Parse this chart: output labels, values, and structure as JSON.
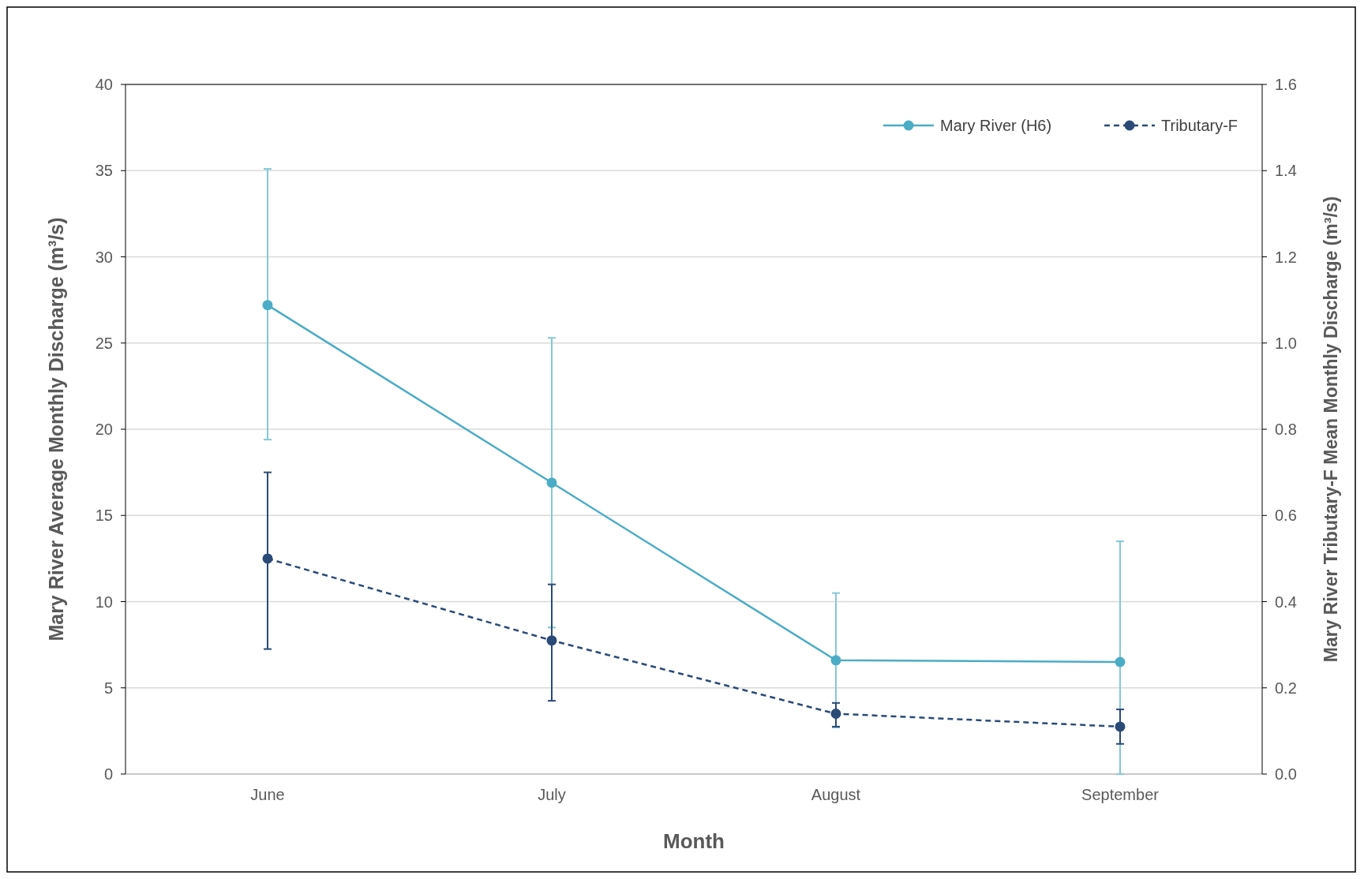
{
  "chart_data": {
    "type": "line",
    "xlabel": "Month",
    "ylabel": "Mary River Average Monthly Discharge (m³/s)",
    "y2label": "Mary River Tributary-F Mean Monthly Discharge (m³/s)",
    "categories": [
      "June",
      "July",
      "August",
      "September"
    ],
    "series": [
      {
        "name": "Mary River (H6)",
        "color": "#4bacc6",
        "values": [
          27.2,
          16.9,
          6.6,
          6.5
        ],
        "errors": [
          [
            19.4,
            35.1
          ],
          [
            8.5,
            25.3
          ],
          [
            2.7,
            10.5
          ],
          [
            0,
            13.5
          ]
        ],
        "line_style": "solid"
      },
      {
        "name": "Tributary-F",
        "color": "#2a4a78",
        "values": [
          0.5,
          0.31,
          0.14,
          0.11
        ],
        "errors": [
          [
            0.29,
            0.7
          ],
          [
            0.17,
            0.44
          ],
          [
            0.11,
            0.165
          ],
          [
            0.07,
            0.15
          ]
        ],
        "axis": "y2",
        "line_style": "dashed"
      }
    ],
    "ylim": [
      0,
      40
    ],
    "yticks": [
      0,
      5,
      10,
      15,
      20,
      25,
      30,
      35,
      40
    ],
    "y2lim": [
      0,
      1.6
    ],
    "y2ticks": [
      {
        "value": 0,
        "label": "0.0"
      },
      {
        "value": 0.2,
        "label": "0.2"
      },
      {
        "value": 0.4,
        "label": "0.4"
      },
      {
        "value": 0.6,
        "label": "0.6"
      },
      {
        "value": 0.8,
        "label": "0.8"
      },
      {
        "value": 1,
        "label": "1.0"
      },
      {
        "value": 1.2,
        "label": "1.2"
      },
      {
        "value": 1.4,
        "label": "1.4"
      },
      {
        "value": 1.6,
        "label": "1.6"
      }
    ],
    "grid": "y",
    "legend": "top right",
    "marker": "circle"
  }
}
